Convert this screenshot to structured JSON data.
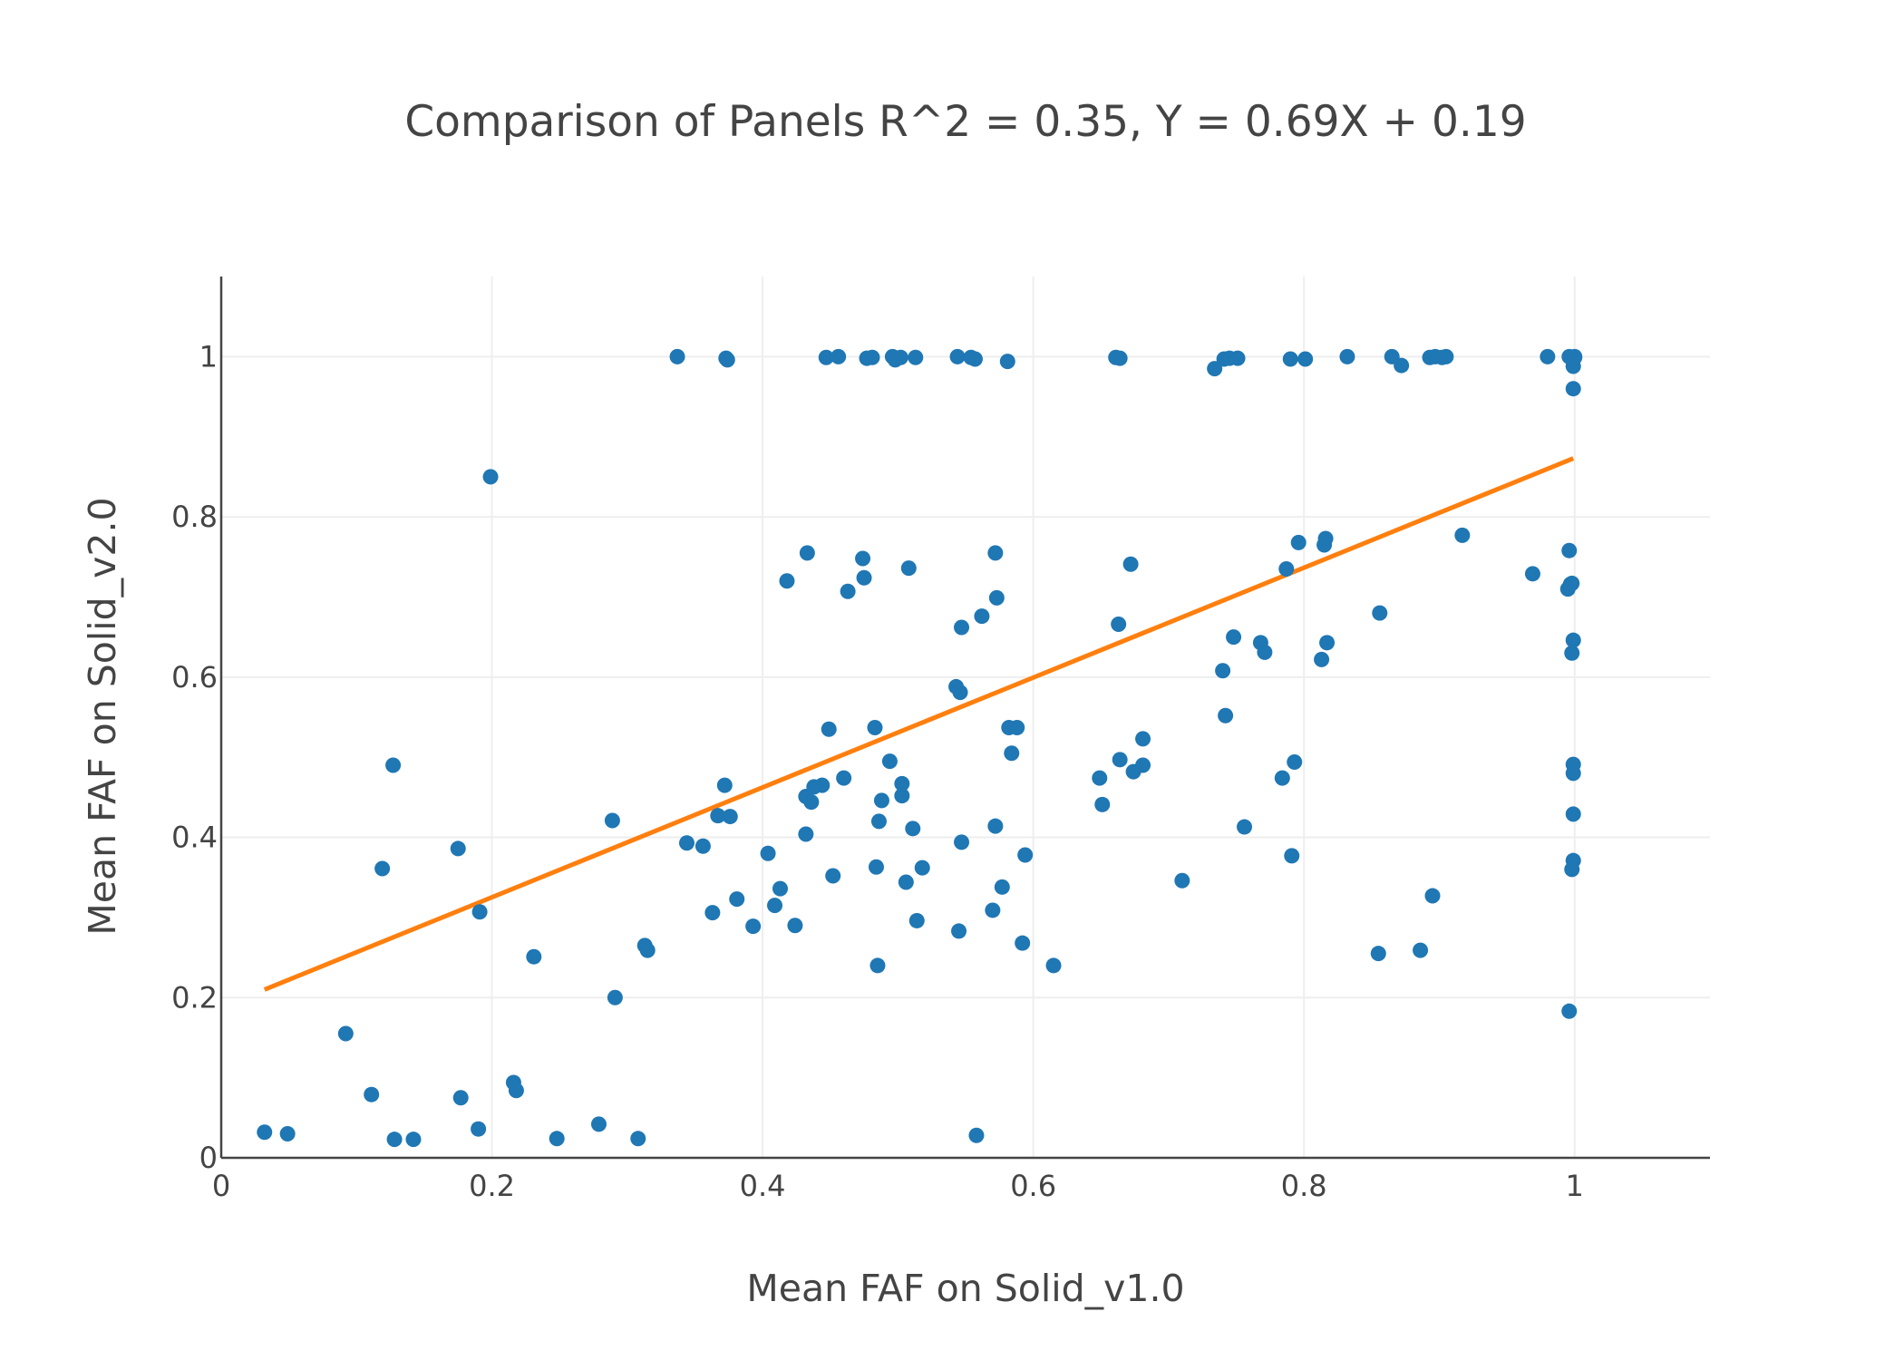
{
  "chart_data": {
    "type": "scatter",
    "title": "Comparison of Panels R^2 = 0.35, Y = 0.69X + 0.19",
    "xlabel": "Mean FAF on Solid_v1.0",
    "ylabel": "Mean FAF on Solid_v2.0",
    "xlim": [
      0,
      1.1
    ],
    "ylim": [
      0,
      1.1
    ],
    "xticks": [
      0,
      0.2,
      0.4,
      0.6,
      0.8,
      1
    ],
    "xtick_labels": [
      "0",
      "0.2",
      "0.4",
      "0.6",
      "0.8",
      "1"
    ],
    "yticks": [
      0,
      0.2,
      0.4,
      0.6,
      0.8,
      1
    ],
    "ytick_labels": [
      "0",
      "0.2",
      "0.4",
      "0.6",
      "0.8",
      "1"
    ],
    "grid": true,
    "legend": false,
    "colors": {
      "points": "#1f77b4",
      "fit": "#ff7f0e",
      "grid": "#eeeeee",
      "axis": "#444444"
    },
    "fit_line": {
      "x": [
        0.032,
        0.999
      ],
      "y": [
        0.21,
        0.873
      ]
    },
    "points": [
      [
        0.032,
        0.032
      ],
      [
        0.049,
        0.03
      ],
      [
        0.092,
        0.155
      ],
      [
        0.111,
        0.079
      ],
      [
        0.119,
        0.361
      ],
      [
        0.127,
        0.49
      ],
      [
        0.128,
        0.023
      ],
      [
        0.142,
        0.023
      ],
      [
        0.175,
        0.386
      ],
      [
        0.177,
        0.075
      ],
      [
        0.19,
        0.036
      ],
      [
        0.191,
        0.307
      ],
      [
        0.199,
        0.85
      ],
      [
        0.216,
        0.094
      ],
      [
        0.218,
        0.084
      ],
      [
        0.231,
        0.251
      ],
      [
        0.248,
        0.024
      ],
      [
        0.279,
        0.042
      ],
      [
        0.289,
        0.421
      ],
      [
        0.291,
        0.2
      ],
      [
        0.308,
        0.024
      ],
      [
        0.313,
        0.265
      ],
      [
        0.315,
        0.259
      ],
      [
        0.337,
        1.0
      ],
      [
        0.344,
        0.393
      ],
      [
        0.356,
        0.389
      ],
      [
        0.363,
        0.306
      ],
      [
        0.367,
        0.427
      ],
      [
        0.372,
        0.465
      ],
      [
        0.373,
        0.998
      ],
      [
        0.374,
        0.996
      ],
      [
        0.376,
        0.426
      ],
      [
        0.381,
        0.323
      ],
      [
        0.393,
        0.289
      ],
      [
        0.404,
        0.38
      ],
      [
        0.409,
        0.315
      ],
      [
        0.413,
        0.336
      ],
      [
        0.418,
        0.72
      ],
      [
        0.424,
        0.29
      ],
      [
        0.432,
        0.404
      ],
      [
        0.432,
        0.451
      ],
      [
        0.433,
        0.755
      ],
      [
        0.436,
        0.444
      ],
      [
        0.438,
        0.463
      ],
      [
        0.444,
        0.465
      ],
      [
        0.447,
        0.999
      ],
      [
        0.449,
        0.535
      ],
      [
        0.452,
        0.352
      ],
      [
        0.456,
        1.0
      ],
      [
        0.46,
        0.474
      ],
      [
        0.463,
        0.707
      ],
      [
        0.474,
        0.748
      ],
      [
        0.475,
        0.724
      ],
      [
        0.477,
        0.998
      ],
      [
        0.481,
        0.999
      ],
      [
        0.483,
        0.537
      ],
      [
        0.484,
        0.363
      ],
      [
        0.485,
        0.24
      ],
      [
        0.486,
        0.42
      ],
      [
        0.488,
        0.446
      ],
      [
        0.494,
        0.495
      ],
      [
        0.496,
        1.0
      ],
      [
        0.498,
        0.996
      ],
      [
        0.502,
        0.999
      ],
      [
        0.503,
        0.452
      ],
      [
        0.503,
        0.467
      ],
      [
        0.506,
        0.344
      ],
      [
        0.508,
        0.736
      ],
      [
        0.511,
        0.411
      ],
      [
        0.513,
        0.999
      ],
      [
        0.514,
        0.296
      ],
      [
        0.518,
        0.362
      ],
      [
        0.543,
        0.588
      ],
      [
        0.544,
        1.0
      ],
      [
        0.545,
        0.283
      ],
      [
        0.546,
        0.581
      ],
      [
        0.547,
        0.394
      ],
      [
        0.547,
        0.662
      ],
      [
        0.554,
        0.999
      ],
      [
        0.557,
        0.997
      ],
      [
        0.558,
        0.028
      ],
      [
        0.562,
        0.676
      ],
      [
        0.57,
        0.309
      ],
      [
        0.572,
        0.414
      ],
      [
        0.572,
        0.755
      ],
      [
        0.573,
        0.699
      ],
      [
        0.577,
        0.338
      ],
      [
        0.581,
        0.994
      ],
      [
        0.582,
        0.537
      ],
      [
        0.584,
        0.505
      ],
      [
        0.588,
        0.537
      ],
      [
        0.592,
        0.268
      ],
      [
        0.594,
        0.378
      ],
      [
        0.615,
        0.24
      ],
      [
        0.649,
        0.474
      ],
      [
        0.651,
        0.441
      ],
      [
        0.661,
        0.999
      ],
      [
        0.663,
        0.666
      ],
      [
        0.664,
        0.497
      ],
      [
        0.664,
        0.998
      ],
      [
        0.672,
        0.741
      ],
      [
        0.674,
        0.482
      ],
      [
        0.681,
        0.523
      ],
      [
        0.681,
        0.49
      ],
      [
        0.71,
        0.346
      ],
      [
        0.734,
        0.985
      ],
      [
        0.74,
        0.608
      ],
      [
        0.741,
        0.997
      ],
      [
        0.742,
        0.552
      ],
      [
        0.745,
        0.998
      ],
      [
        0.748,
        0.65
      ],
      [
        0.751,
        0.998
      ],
      [
        0.756,
        0.413
      ],
      [
        0.768,
        0.643
      ],
      [
        0.771,
        0.631
      ],
      [
        0.784,
        0.474
      ],
      [
        0.787,
        0.735
      ],
      [
        0.79,
        0.997
      ],
      [
        0.791,
        0.377
      ],
      [
        0.793,
        0.494
      ],
      [
        0.796,
        0.768
      ],
      [
        0.801,
        0.997
      ],
      [
        0.813,
        0.622
      ],
      [
        0.815,
        0.765
      ],
      [
        0.816,
        0.773
      ],
      [
        0.817,
        0.643
      ],
      [
        0.832,
        1.0
      ],
      [
        0.855,
        0.255
      ],
      [
        0.856,
        0.68
      ],
      [
        0.865,
        1.0
      ],
      [
        0.872,
        0.989
      ],
      [
        0.886,
        0.259
      ],
      [
        0.893,
        0.999
      ],
      [
        0.895,
        0.327
      ],
      [
        0.897,
        1.0
      ],
      [
        0.902,
        0.999
      ],
      [
        0.905,
        1.0
      ],
      [
        0.917,
        0.777
      ],
      [
        0.969,
        0.729
      ],
      [
        0.98,
        1.0
      ],
      [
        0.995,
        0.71
      ],
      [
        0.996,
        0.758
      ],
      [
        0.996,
        0.183
      ],
      [
        0.996,
        1.0
      ],
      [
        0.997,
        0.716
      ],
      [
        0.998,
        0.717
      ],
      [
        0.998,
        0.999
      ],
      [
        0.998,
        0.63
      ],
      [
        0.998,
        0.36
      ],
      [
        0.999,
        0.646
      ],
      [
        0.999,
        0.491
      ],
      [
        0.999,
        0.48
      ],
      [
        0.999,
        0.429
      ],
      [
        0.999,
        0.371
      ],
      [
        0.999,
        0.96
      ],
      [
        0.999,
        0.988
      ],
      [
        1.0,
        0.999
      ],
      [
        1.0,
        1.0
      ]
    ]
  }
}
